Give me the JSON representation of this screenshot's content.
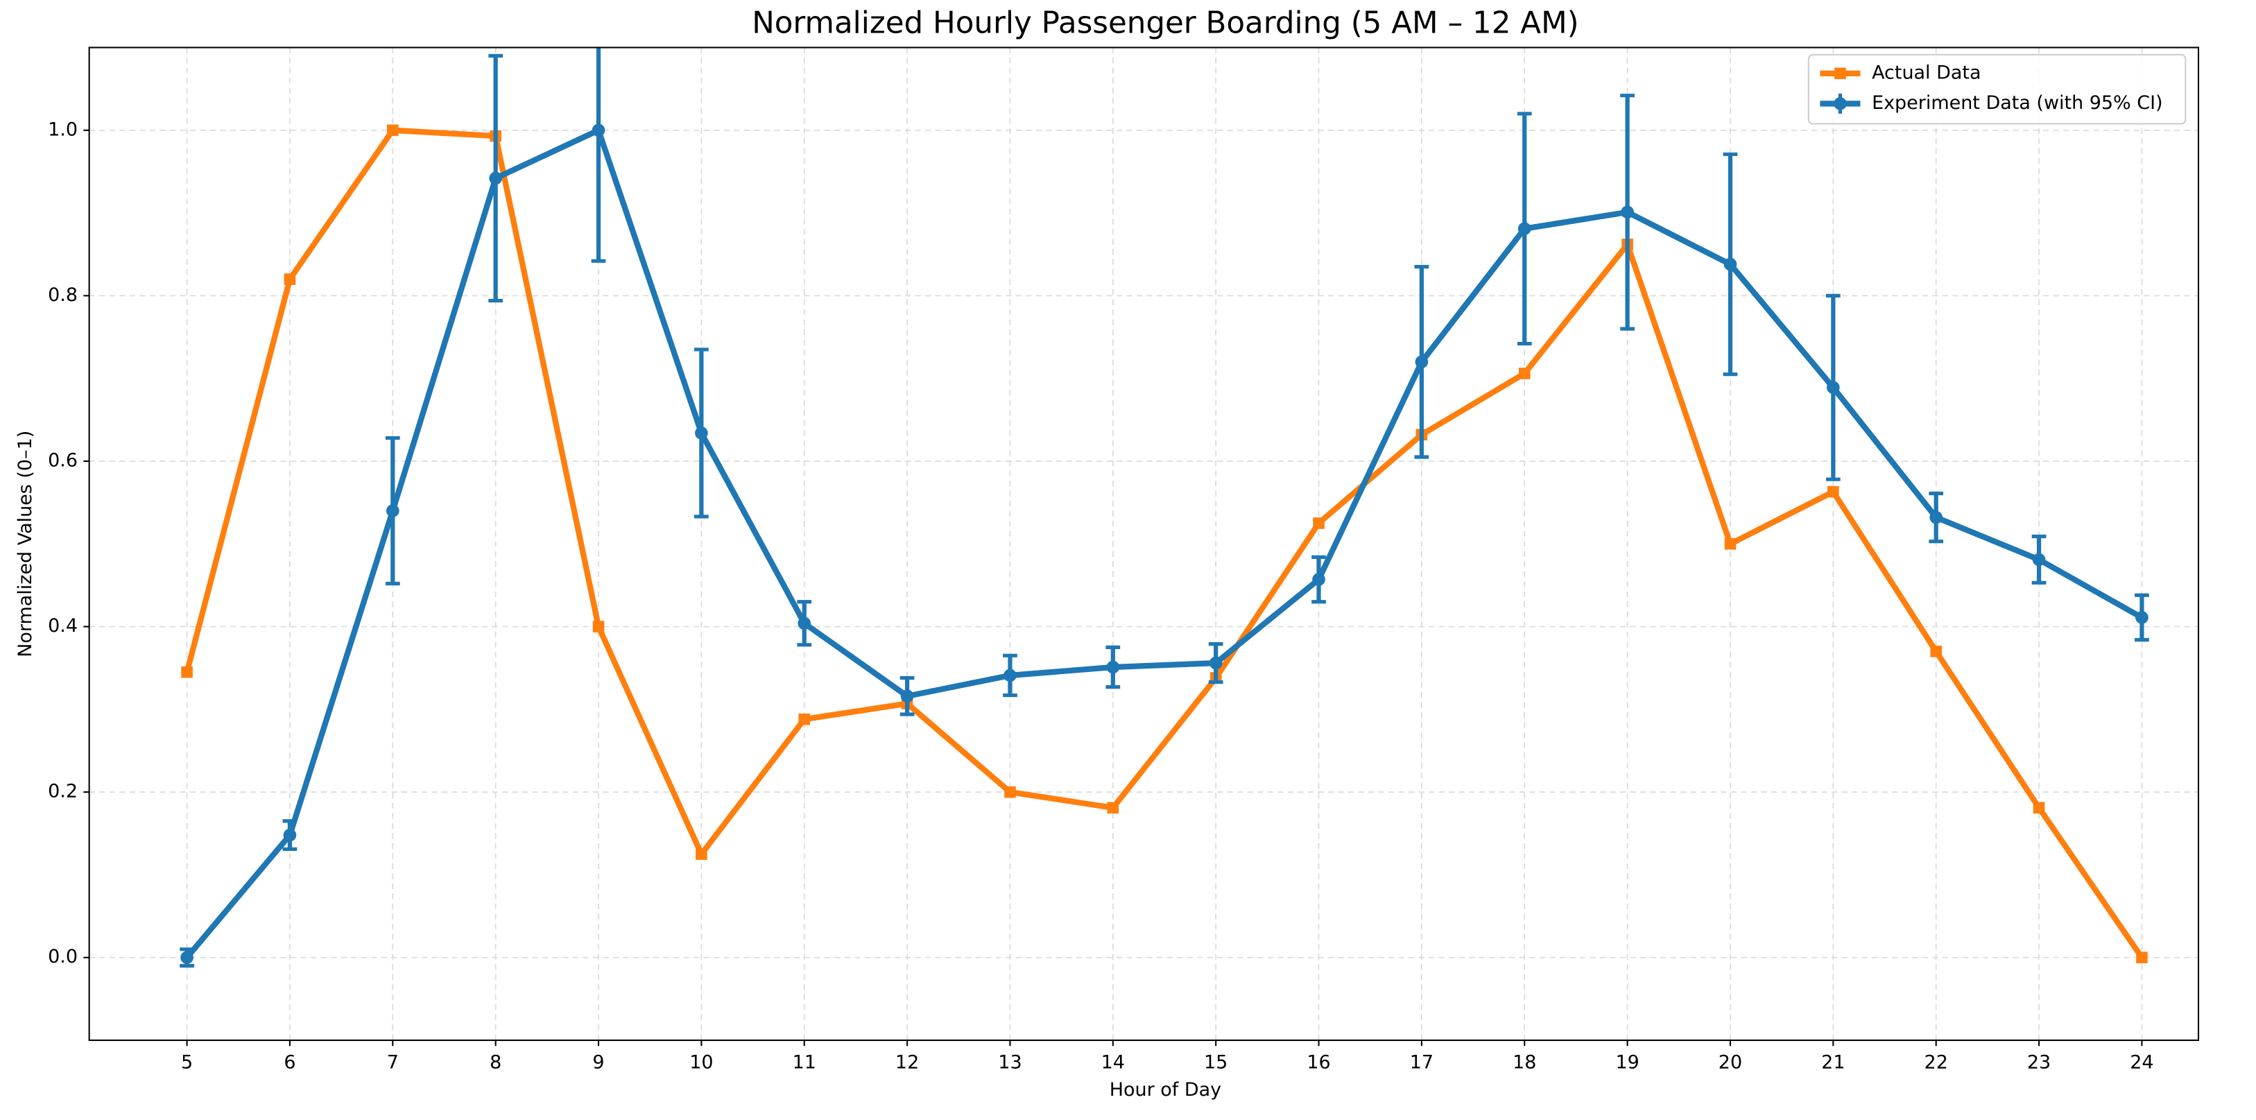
{
  "chart_data": {
    "type": "line",
    "title": "Normalized Hourly Passenger Boarding (5 AM – 12 AM)",
    "x_label": "Hour of Day",
    "y_label": "Normalized Values (0–1)",
    "x": [
      5,
      6,
      7,
      8,
      9,
      10,
      11,
      12,
      13,
      14,
      15,
      16,
      17,
      18,
      19,
      20,
      21,
      22,
      23,
      24
    ],
    "series": [
      {
        "name": "Actual Data",
        "color": "#ff7f0e",
        "marker": "square",
        "values": [
          0.345,
          0.82,
          1.0,
          0.993,
          0.4,
          0.125,
          0.288,
          0.307,
          0.2,
          0.181,
          0.338,
          0.525,
          0.632,
          0.706,
          0.862,
          0.5,
          0.563,
          0.37,
          0.181,
          0.0
        ]
      },
      {
        "name": "Experiment Data (with 95% CI)",
        "color": "#1f77b4",
        "marker": "circle",
        "values": [
          0.0,
          0.148,
          0.54,
          0.942,
          1.0,
          0.634,
          0.404,
          0.316,
          0.341,
          0.351,
          0.356,
          0.457,
          0.72,
          0.881,
          0.901,
          0.838,
          0.689,
          0.532,
          0.481,
          0.411
        ],
        "errors": [
          0.01,
          0.017,
          0.088,
          0.148,
          0.158,
          0.101,
          0.026,
          0.022,
          0.024,
          0.024,
          0.023,
          0.027,
          0.115,
          0.139,
          0.141,
          0.133,
          0.111,
          0.029,
          0.028,
          0.027
        ]
      }
    ],
    "xlim": [
      4.05,
      24.55
    ],
    "ylim": [
      -0.1,
      1.1
    ],
    "xticks": [
      5,
      6,
      7,
      8,
      9,
      10,
      11,
      12,
      13,
      14,
      15,
      16,
      17,
      18,
      19,
      20,
      21,
      22,
      23,
      24
    ],
    "yticks": [
      {
        "value": 0,
        "label": "0.0"
      },
      0.2,
      0.4,
      0.6,
      0.8,
      {
        "value": 1,
        "label": "1.0"
      }
    ],
    "grid": true,
    "legend": "upper right"
  }
}
